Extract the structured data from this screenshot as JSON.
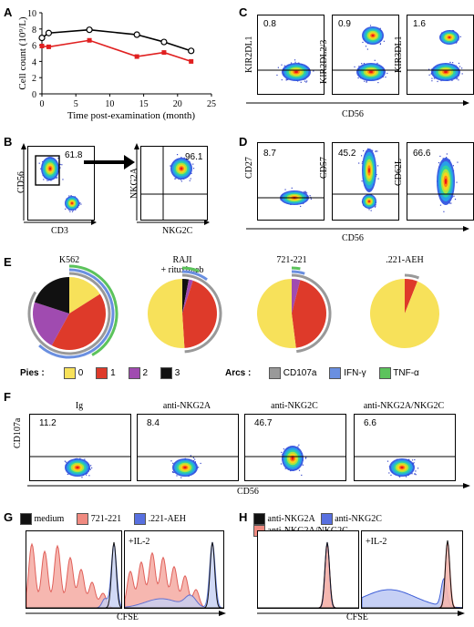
{
  "panels": {
    "A": {
      "letter": "A",
      "chart_data": {
        "type": "line",
        "xlabel": "Time post-examination (month)",
        "ylabel": "Cell count (10⁹/L)",
        "xlim": [
          0,
          25
        ],
        "ylim": [
          0,
          10
        ],
        "xticks": [
          "0",
          "5",
          "10",
          "15",
          "20",
          "25"
        ],
        "yticks": [
          "0",
          "2",
          "4",
          "6",
          "8",
          "10"
        ],
        "series": [
          {
            "color": "#000000",
            "marker": "open-circle",
            "x": [
              0,
              1,
              7,
              14,
              18,
              22
            ],
            "y": [
              6.9,
              7.5,
              7.9,
              7.3,
              6.4,
              5.3
            ]
          },
          {
            "color": "#e02020",
            "marker": "square",
            "x": [
              0,
              1,
              7,
              14,
              18,
              22
            ],
            "y": [
              5.9,
              5.8,
              6.6,
              4.6,
              5.1,
              4.0
            ]
          }
        ]
      }
    },
    "B": {
      "letter": "B",
      "plot1": {
        "xlabel": "CD3",
        "ylabel": "CD56",
        "value": "61.8"
      },
      "plot2": {
        "xlabel": "NKG2C",
        "ylabel": "NKG2A",
        "value": "96.1"
      }
    },
    "C": {
      "letter": "C",
      "xlabel": "CD56",
      "plots": [
        {
          "ylabel": "KIR2DL1",
          "value": "0.8"
        },
        {
          "ylabel": "KIR2DL2/3",
          "value": "0.9"
        },
        {
          "ylabel": "KIR3DL1",
          "value": "1.6"
        }
      ]
    },
    "D": {
      "letter": "D",
      "xlabel": "CD56",
      "plots": [
        {
          "ylabel": "CD27",
          "value": "8.7"
        },
        {
          "ylabel": "CD57",
          "value": "45.2"
        },
        {
          "ylabel": "CD62L",
          "value": "66.6"
        }
      ]
    },
    "E": {
      "letter": "E",
      "pies": [
        {
          "title": "K562",
          "slices": [
            {
              "v": 16,
              "color": "#f7e15a"
            },
            {
              "v": 42,
              "color": "#de3a2a"
            },
            {
              "v": 22,
              "color": "#a04bb0"
            },
            {
              "v": 20,
              "color": "#111111"
            }
          ]
        },
        {
          "title": "RAJI\n+ rituximab",
          "slices": [
            {
              "v": 3,
              "color": "#111111"
            },
            {
              "v": 2,
              "color": "#a04bb0"
            },
            {
              "v": 44,
              "color": "#de3a2a"
            },
            {
              "v": 51,
              "color": "#f7e15a"
            }
          ]
        },
        {
          "title": "721-221",
          "slices": [
            {
              "v": 4,
              "color": "#a04bb0"
            },
            {
              "v": 44,
              "color": "#de3a2a"
            },
            {
              "v": 52,
              "color": "#f7e15a"
            }
          ]
        },
        {
          "title": ".221-AEH",
          "slices": [
            {
              "v": 6,
              "color": "#de3a2a"
            },
            {
              "v": 94,
              "color": "#f7e15a"
            }
          ]
        }
      ],
      "legend": {
        "pies_label": "Pies",
        "pie_items": [
          {
            "label": "0",
            "color": "#f7e15a"
          },
          {
            "label": "1",
            "color": "#de3a2a"
          },
          {
            "label": "2",
            "color": "#a04bb0"
          },
          {
            "label": "3",
            "color": "#111111"
          }
        ],
        "arcs_label": "Arcs",
        "arc_items": [
          {
            "label": "CD107a",
            "color": "#999999"
          },
          {
            "label": "IFN-γ",
            "color": "#6a8fe0"
          },
          {
            "label": "TNF-α",
            "color": "#5cc35c"
          }
        ]
      }
    },
    "F": {
      "letter": "F",
      "ylabel": "CD107a",
      "xlabel": "CD56",
      "plots": [
        {
          "title": "Ig",
          "value": "11.2"
        },
        {
          "title": "anti-NKG2A",
          "value": "8.4"
        },
        {
          "title": "anti-NKG2C",
          "value": "46.7"
        },
        {
          "title": "anti-NKG2A/NKG2C",
          "value": "6.6"
        }
      ]
    },
    "G": {
      "letter": "G",
      "xlabel": "CFSE",
      "legend": [
        {
          "label": "medium",
          "color": "#111111"
        },
        {
          "label": "721-221",
          "color": "#f08a80"
        },
        {
          "label": ".221-AEH",
          "color": "#5870e0"
        }
      ],
      "plot2_label": "+IL-2"
    },
    "H": {
      "letter": "H",
      "xlabel": "CFSE",
      "legend": [
        {
          "label": "anti-NKG2A",
          "color": "#111111"
        },
        {
          "label": "anti-NKG2C",
          "color": "#5870e0"
        },
        {
          "label": "anti-NKG2A/NKG2C",
          "color": "#f08a80"
        }
      ],
      "plot2_label": "+IL-2"
    }
  }
}
